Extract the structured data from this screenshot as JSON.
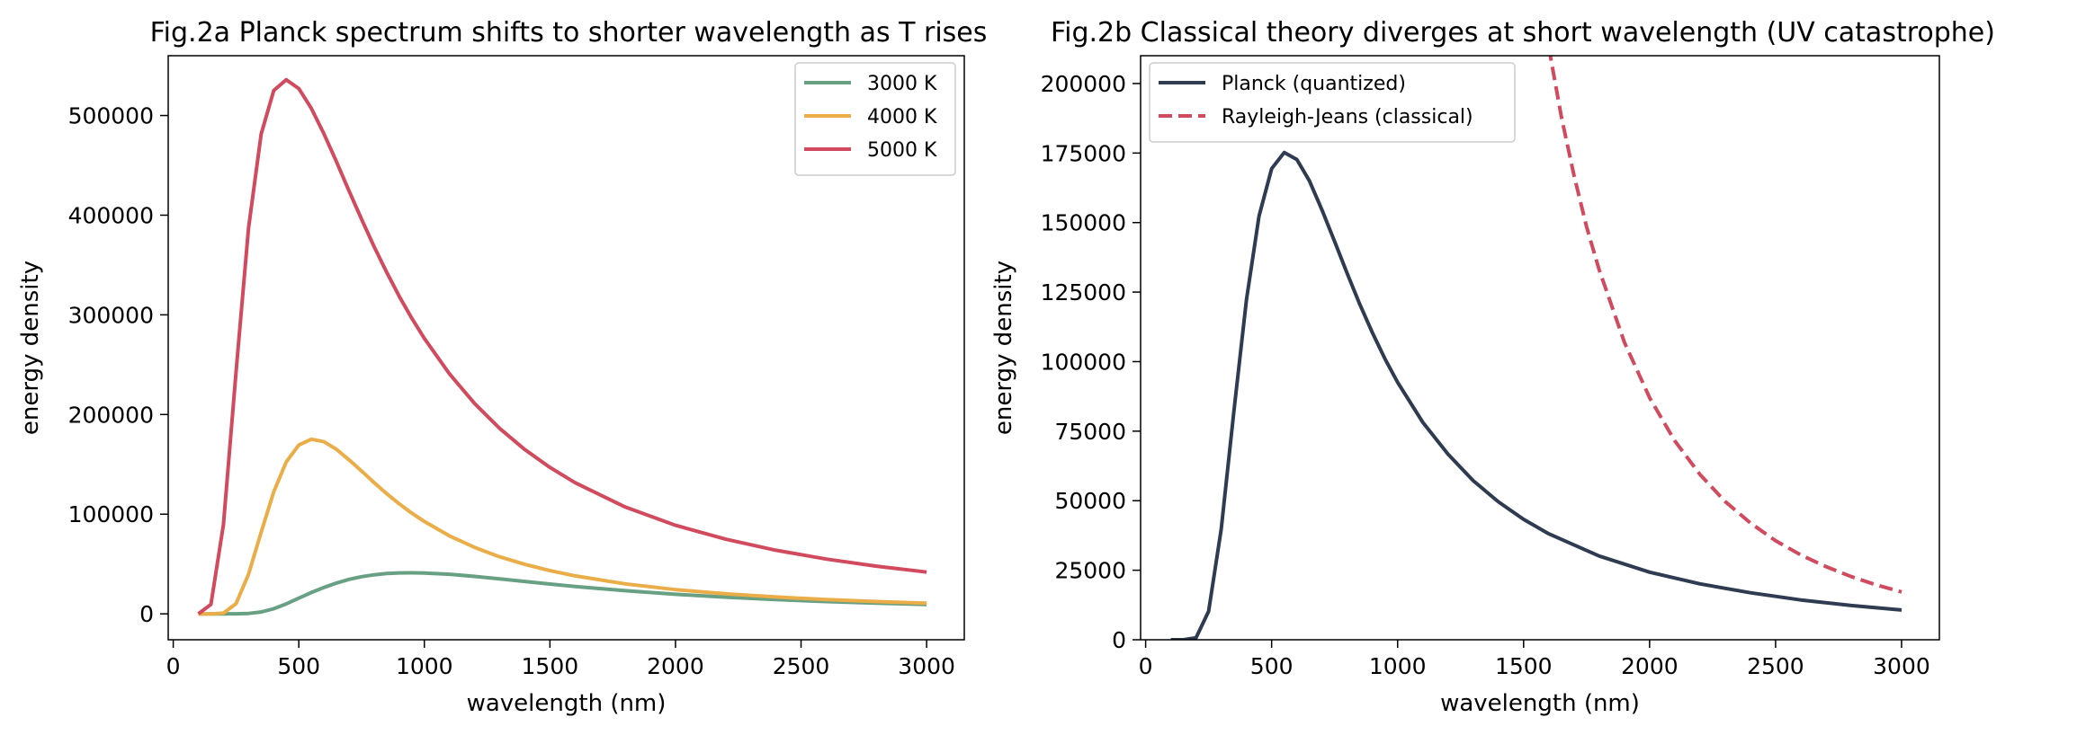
{
  "chart_data": [
    {
      "type": "line",
      "title": "Fig.2a Planck spectrum shifts to shorter wavelength as T rises",
      "xlabel": "wavelength (nm)",
      "ylabel": "energy density",
      "xlim": [
        -20,
        3150
      ],
      "ylim": [
        -26000,
        560000
      ],
      "x_ticks": [
        0,
        500,
        1000,
        1500,
        2000,
        2500,
        3000
      ],
      "y_ticks": [
        0,
        100000,
        200000,
        300000,
        400000,
        500000
      ],
      "legend_position": "top-right",
      "grid": false,
      "x": [
        100,
        150,
        200,
        250,
        300,
        350,
        400,
        450,
        500,
        550,
        600,
        650,
        700,
        750,
        800,
        850,
        900,
        950,
        1000,
        1100,
        1200,
        1300,
        1400,
        1500,
        1600,
        1800,
        2000,
        2200,
        2400,
        2600,
        2800,
        3000
      ],
      "series": [
        {
          "name": "3000 K",
          "color": "#68a084",
          "values": [
            0,
            0,
            0,
            30,
            380,
            1850,
            5100,
            10000,
            15700,
            21400,
            26500,
            30900,
            34600,
            37300,
            39200,
            40500,
            41100,
            41200,
            41000,
            39700,
            37600,
            35000,
            32500,
            29900,
            27500,
            23200,
            19600,
            16700,
            14300,
            12300,
            10700,
            9400
          ]
        },
        {
          "name": "4000 K",
          "color": "#eaad48",
          "values": [
            0,
            0,
            680,
            10200,
            39700,
            81800,
            122300,
            152400,
            169400,
            175200,
            172700,
            165000,
            154500,
            143200,
            131700,
            120600,
            110400,
            101000,
            92600,
            78200,
            66700,
            57200,
            49600,
            43300,
            38100,
            30100,
            24300,
            20100,
            16900,
            14300,
            12300,
            10700
          ]
        },
        {
          "name": "5000 K",
          "color": "#d14a5e",
          "values": [
            20,
            9400,
            89600,
            242500,
            387100,
            481300,
            525000,
            535900,
            527000,
            507200,
            481700,
            453500,
            424400,
            395800,
            368400,
            342600,
            318700,
            296600,
            276300,
            240800,
            211000,
            186000,
            164900,
            146900,
            131600,
            107200,
            88900,
            74900,
            63800,
            55000,
            47800,
            41900
          ]
        }
      ]
    },
    {
      "type": "line",
      "title": "Fig.2b Classical theory diverges at short wavelength (UV catastrophe)",
      "xlabel": "wavelength (nm)",
      "ylabel": "energy density",
      "xlim": [
        -20,
        3150
      ],
      "ylim": [
        0,
        210000
      ],
      "x_ticks": [
        0,
        500,
        1000,
        1500,
        2000,
        2500,
        3000
      ],
      "y_ticks": [
        0,
        25000,
        50000,
        75000,
        100000,
        125000,
        150000,
        175000,
        200000
      ],
      "legend_position": "top-left",
      "grid": false,
      "series": [
        {
          "name": "Planck (quantized)",
          "color": "#2e3b50",
          "style": "solid",
          "x": [
            100,
            150,
            200,
            250,
            300,
            350,
            400,
            450,
            500,
            550,
            600,
            650,
            700,
            750,
            800,
            850,
            900,
            950,
            1000,
            1100,
            1200,
            1300,
            1400,
            1500,
            1600,
            1800,
            2000,
            2200,
            2400,
            2600,
            2800,
            3000
          ],
          "values": [
            0,
            0,
            680,
            10200,
            39700,
            81800,
            122300,
            152400,
            169400,
            175200,
            172700,
            165000,
            154500,
            143200,
            131700,
            120600,
            110400,
            101000,
            92600,
            78200,
            66700,
            57200,
            49600,
            43300,
            38100,
            30100,
            24300,
            20100,
            16900,
            14300,
            12300,
            10700
          ]
        },
        {
          "name": "Rayleigh-Jeans (classical)",
          "color": "#d14a5e",
          "style": "dashed",
          "x": [
            1600,
            1650,
            1700,
            1750,
            1800,
            1900,
            2000,
            2100,
            2200,
            2300,
            2400,
            2500,
            2600,
            2700,
            2800,
            2900,
            3000
          ],
          "values": [
            213000,
            188000,
            167000,
            148500,
            133000,
            107000,
            87000,
            71500,
            59400,
            49700,
            42000,
            35600,
            30500,
            26300,
            22700,
            19700,
            17200
          ]
        }
      ]
    }
  ]
}
